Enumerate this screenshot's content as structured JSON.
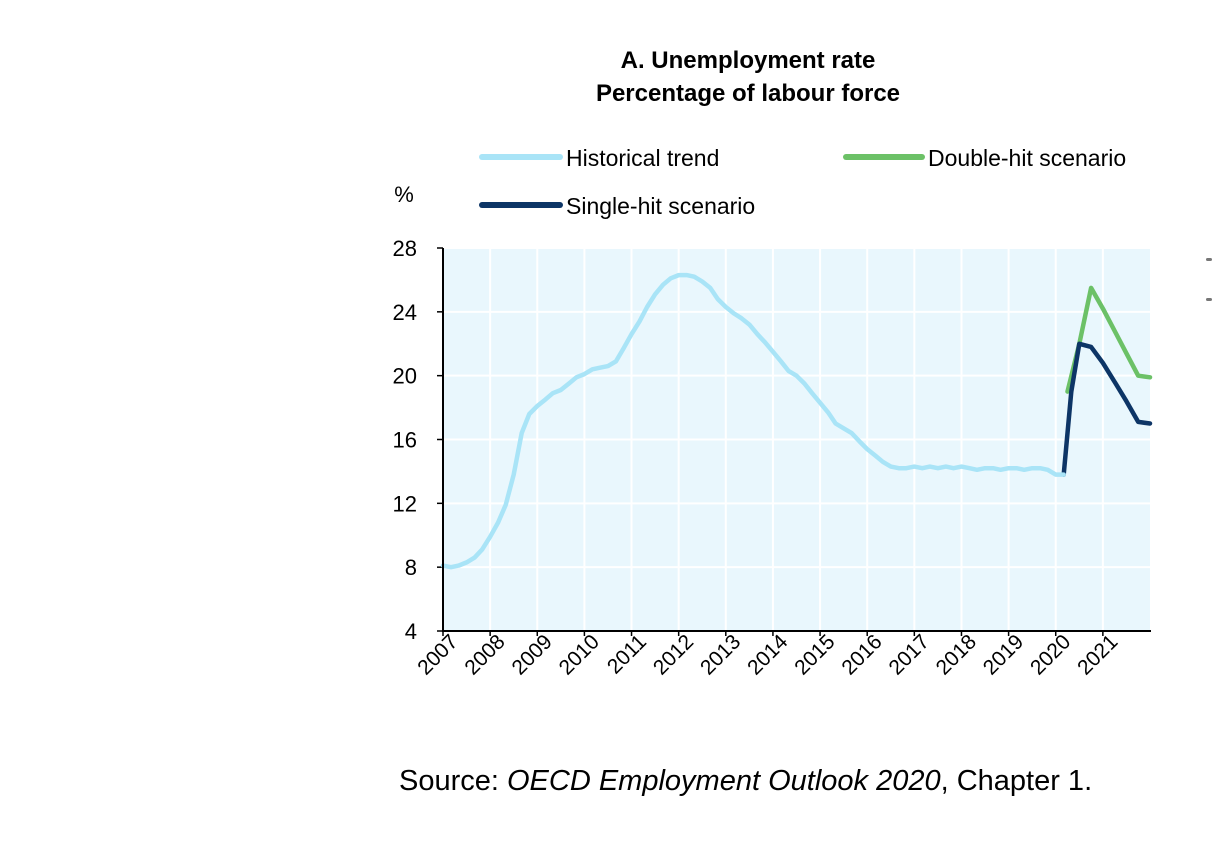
{
  "chart_data": {
    "type": "line",
    "title": "A. Unemployment rate",
    "subtitle": "Percentage of labour force",
    "ylabel": "%",
    "xlabel": "",
    "ylim": [
      4,
      28
    ],
    "yticks": [
      4,
      8,
      12,
      16,
      20,
      24,
      28
    ],
    "xlim": [
      2007,
      2022
    ],
    "xticks": [
      "2007",
      "2008",
      "2009",
      "2010",
      "2011",
      "2012",
      "2013",
      "2014",
      "2015",
      "2016",
      "2017",
      "2018",
      "2019",
      "2020",
      "2021"
    ],
    "legend_position": "top",
    "series": [
      {
        "name": "Historical trend",
        "color": "#a9e4f7",
        "x": [
          2007.0,
          2007.17,
          2007.33,
          2007.5,
          2007.67,
          2007.83,
          2008.0,
          2008.17,
          2008.33,
          2008.5,
          2008.67,
          2008.83,
          2009.0,
          2009.17,
          2009.33,
          2009.5,
          2009.67,
          2009.83,
          2010.0,
          2010.17,
          2010.33,
          2010.5,
          2010.67,
          2010.83,
          2011.0,
          2011.17,
          2011.33,
          2011.5,
          2011.67,
          2011.83,
          2012.0,
          2012.17,
          2012.33,
          2012.5,
          2012.67,
          2012.83,
          2013.0,
          2013.17,
          2013.33,
          2013.5,
          2013.67,
          2013.83,
          2014.0,
          2014.17,
          2014.33,
          2014.5,
          2014.67,
          2014.83,
          2015.0,
          2015.17,
          2015.33,
          2015.5,
          2015.67,
          2015.83,
          2016.0,
          2016.17,
          2016.33,
          2016.5,
          2016.67,
          2016.83,
          2017.0,
          2017.17,
          2017.33,
          2017.5,
          2017.67,
          2017.83,
          2018.0,
          2018.17,
          2018.33,
          2018.5,
          2018.67,
          2018.83,
          2019.0,
          2019.17,
          2019.33,
          2019.5,
          2019.67,
          2019.83,
          2020.0,
          2020.17
        ],
        "values": [
          8.1,
          8.0,
          8.1,
          8.3,
          8.6,
          9.1,
          9.9,
          10.8,
          11.9,
          13.8,
          16.4,
          17.6,
          18.1,
          18.5,
          18.9,
          19.1,
          19.5,
          19.9,
          20.1,
          20.4,
          20.5,
          20.6,
          20.9,
          21.7,
          22.6,
          23.4,
          24.3,
          25.1,
          25.7,
          26.1,
          26.3,
          26.3,
          26.2,
          25.9,
          25.5,
          24.8,
          24.3,
          23.9,
          23.6,
          23.2,
          22.6,
          22.1,
          21.5,
          20.9,
          20.3,
          20.0,
          19.5,
          18.9,
          18.3,
          17.7,
          17.0,
          16.7,
          16.4,
          15.9,
          15.4,
          15.0,
          14.6,
          14.3,
          14.2,
          14.2,
          14.3,
          14.2,
          14.3,
          14.2,
          14.3,
          14.2,
          14.3,
          14.2,
          14.1,
          14.2,
          14.2,
          14.1,
          14.2,
          14.2,
          14.1,
          14.2,
          14.2,
          14.1,
          13.8,
          13.8
        ]
      },
      {
        "name": "Double-hit scenario",
        "color": "#6cc167",
        "x": [
          2020.25,
          2020.5,
          2020.75,
          2021.0,
          2021.25,
          2021.5,
          2021.75,
          2022.0
        ],
        "values": [
          19.0,
          22.0,
          25.5,
          24.2,
          22.8,
          21.4,
          20.0,
          19.9
        ]
      },
      {
        "name": "Single-hit scenario",
        "color": "#0d3566",
        "x": [
          2020.17,
          2020.33,
          2020.5,
          2020.75,
          2021.0,
          2021.25,
          2021.5,
          2021.75,
          2022.0
        ],
        "values": [
          13.8,
          19.0,
          22.0,
          21.8,
          20.8,
          19.6,
          18.4,
          17.1,
          17.0
        ]
      }
    ]
  },
  "source": {
    "prefix": "Source: ",
    "title": "OECD Employment Outlook 2020",
    "suffix": ", Chapter 1."
  }
}
